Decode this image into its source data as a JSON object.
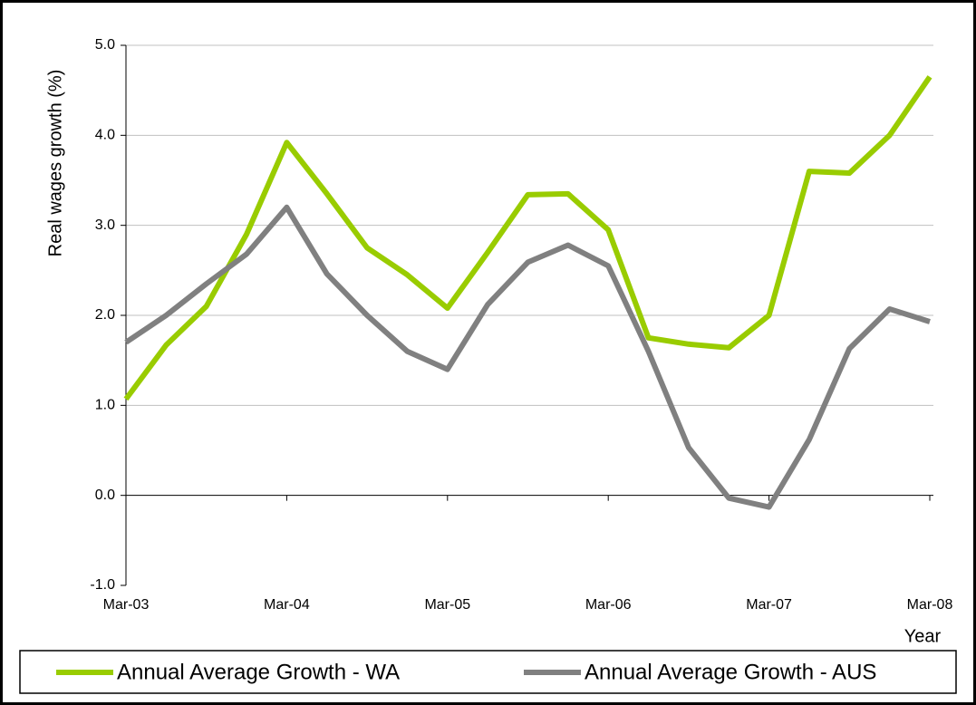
{
  "chart_data": {
    "type": "line",
    "y_label": "Real wages growth (%)",
    "x_label": "Year",
    "categories": [
      "Mar-03",
      null,
      null,
      null,
      "Mar-04",
      null,
      null,
      null,
      "Mar-05",
      null,
      null,
      null,
      "Mar-06",
      null,
      null,
      null,
      "Mar-07",
      null,
      null,
      null,
      "Mar-08"
    ],
    "series": [
      {
        "name": "Annual Average Growth - WA",
        "color": "#99cc00",
        "values": [
          1.07,
          1.67,
          2.1,
          2.9,
          3.92,
          3.35,
          2.75,
          2.45,
          2.08,
          2.7,
          3.34,
          3.35,
          2.95,
          1.75,
          1.68,
          1.64,
          2.0,
          3.6,
          3.58,
          4.0,
          4.65
        ]
      },
      {
        "name": "Annual Average Growth - AUS",
        "color": "#808080",
        "values": [
          1.7,
          2.0,
          2.35,
          2.68,
          3.2,
          2.46,
          2.0,
          1.6,
          1.4,
          2.12,
          2.59,
          2.78,
          2.55,
          1.6,
          0.53,
          -0.03,
          -0.13,
          0.62,
          1.63,
          2.07,
          1.93
        ]
      }
    ],
    "ylim": [
      -1,
      5
    ],
    "yticks": [
      {
        "value": -1,
        "label": "-1.0"
      },
      {
        "value": 0,
        "label": "0.0"
      },
      {
        "value": 1,
        "label": "1.0"
      },
      {
        "value": 2,
        "label": "2.0"
      },
      {
        "value": 3,
        "label": "3.0"
      },
      {
        "value": 4,
        "label": "4.0"
      },
      {
        "value": 5,
        "label": "5.0"
      }
    ],
    "grid": true,
    "legend": "bottom"
  }
}
